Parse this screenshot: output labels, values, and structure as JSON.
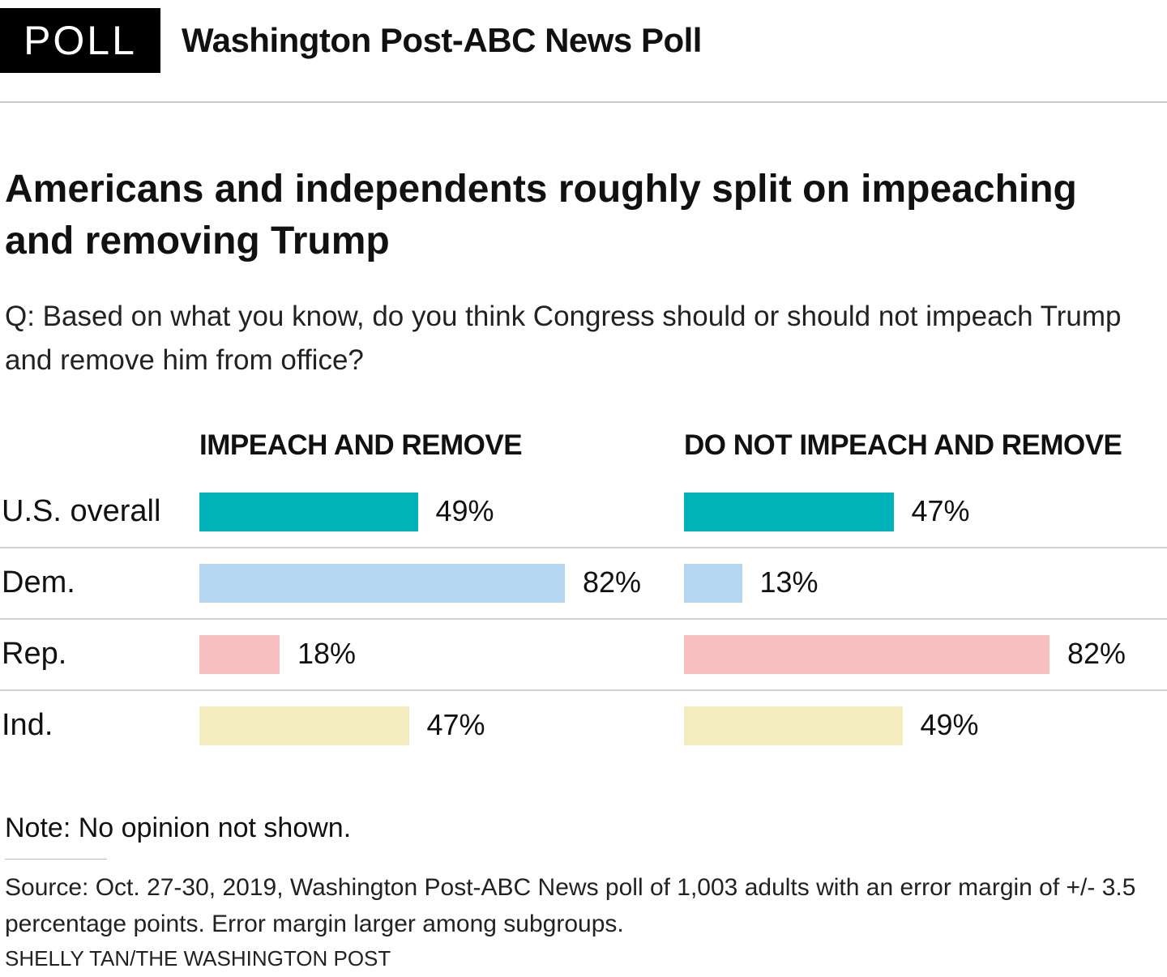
{
  "header": {
    "badge": "POLL",
    "title": "Washington Post-ABC News Poll"
  },
  "headline": "Americans and independents roughly split on impeaching and removing Trump",
  "question": "Q: Based on what you know, do you think Congress should or should not impeach Trump and remove him from office?",
  "note": "Note: No opinion not shown.",
  "source": "Source: Oct. 27-30, 2019, Washington Post-ABC News poll of 1,003 adults with an error margin of +/- 3.5 percentage points. Error margin larger among subgroups.",
  "credit": "SHELLY TAN/THE WASHINGTON POST",
  "chart_data": {
    "type": "bar",
    "orientation": "horizontal",
    "title": "Americans and independents roughly split on impeaching and removing Trump",
    "categories": [
      "U.S. overall",
      "Dem.",
      "Rep.",
      "Ind."
    ],
    "category_colors": [
      "#00b3bb",
      "#b5d6f0",
      "#f7bfbf",
      "#f2ecbf"
    ],
    "series": [
      {
        "name": "IMPEACH AND REMOVE",
        "values": [
          49,
          82,
          18,
          47
        ],
        "labels": [
          "49%",
          "82%",
          "18%",
          "47%"
        ]
      },
      {
        "name": "DO NOT IMPEACH AND REMOVE",
        "values": [
          47,
          13,
          82,
          49
        ],
        "labels": [
          "47%",
          "13%",
          "82%",
          "49%"
        ]
      }
    ],
    "unit": "%",
    "xlim": [
      0,
      100
    ],
    "grid": false,
    "legend": "column-headers"
  }
}
